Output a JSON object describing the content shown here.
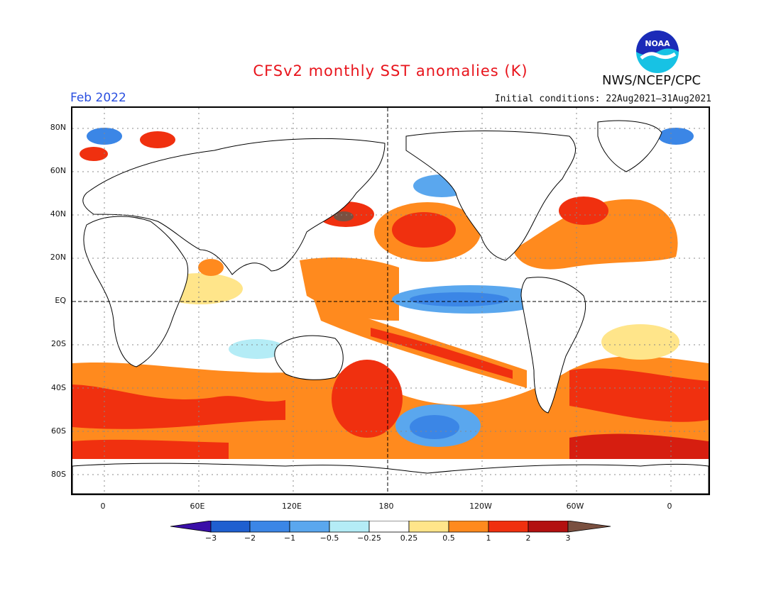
{
  "header": {
    "title": "CFSv2 monthly SST anomalies (K)",
    "period": "Feb 2022",
    "initial_conditions": "Initial conditions: 22Aug2021–31Aug2021",
    "agency": "NWS/NCEP/CPC",
    "logo_text": "NOAA"
  },
  "map": {
    "lat_labels": [
      "80N",
      "60N",
      "40N",
      "20N",
      "EQ",
      "20S",
      "40S",
      "60S",
      "80S"
    ],
    "lon_labels": [
      "0",
      "60E",
      "120E",
      "180",
      "120W",
      "60W",
      "0"
    ],
    "reference_lines": [
      "EQ",
      "180"
    ]
  },
  "colorbar": {
    "labels": [
      "−3",
      "−2",
      "−1",
      "−0.5",
      "−0.25",
      "0.25",
      "0.5",
      "1",
      "2",
      "3"
    ],
    "colors": [
      "#3a0fa8",
      "#1f5fd0",
      "#3b86e6",
      "#5aa7ee",
      "#b4ecf6",
      "#ffffff",
      "#ffe58a",
      "#ff8a1e",
      "#f0300f",
      "#b31010",
      "#7a5040"
    ]
  }
}
